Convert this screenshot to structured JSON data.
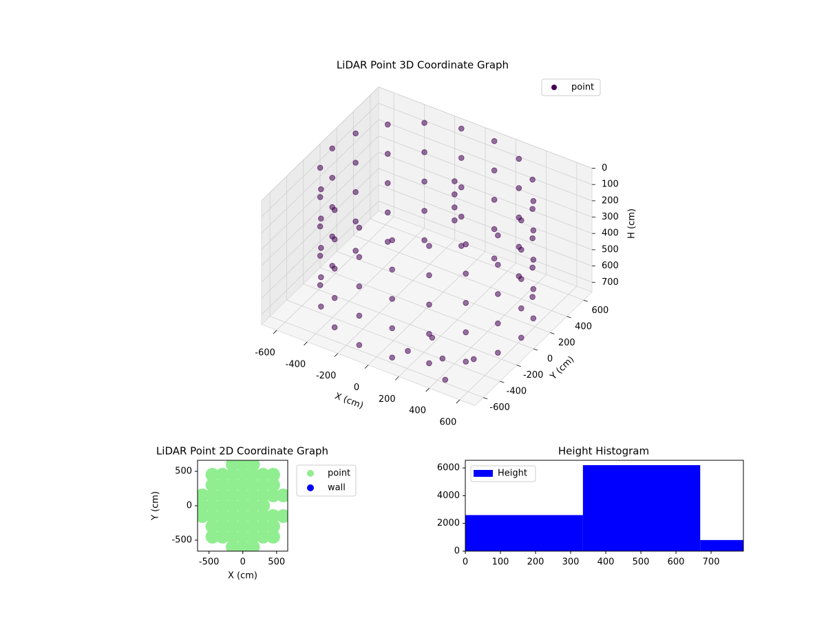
{
  "chart_data": [
    {
      "type": "scatter3d",
      "title": "LiDAR Point 3D Coordinate Graph",
      "xlabel": "X (cm)",
      "ylabel": "Y (cm)",
      "zlabel": "H (cm)",
      "xlim": [
        -700,
        700
      ],
      "ylim": [
        -700,
        700
      ],
      "zlim": [
        0,
        760
      ],
      "z_inverted": true,
      "xticks": [
        -600,
        -400,
        -200,
        0,
        200,
        400,
        600
      ],
      "yticks": [
        -600,
        -400,
        -200,
        0,
        200,
        400,
        600
      ],
      "zticks": [
        0,
        100,
        200,
        300,
        400,
        500,
        600,
        700
      ],
      "grid": true,
      "legend": "upper right",
      "series": [
        {
          "name": "point",
          "color": "#440154",
          "x": [
            620,
            583,
            475,
            310,
            108,
            -108,
            -310,
            -475,
            -583,
            -620,
            -583,
            -475,
            -310,
            -108,
            108,
            310,
            475,
            583,
            620,
            583,
            475,
            310,
            108,
            -108,
            -310,
            -475,
            -583,
            -620,
            -583,
            -475,
            -310,
            -108,
            108,
            310,
            475,
            583,
            620,
            583,
            475,
            310,
            108,
            -108,
            -310,
            -475,
            -583,
            -620,
            -583,
            -475,
            -310,
            -108,
            108,
            310,
            475,
            583,
            620,
            583,
            475,
            310,
            108,
            -108,
            -310,
            -475,
            -583,
            -620,
            -583,
            -475,
            -310,
            -108,
            108,
            310,
            475,
            583,
            620,
            583,
            475,
            310,
            108,
            -108,
            -310,
            -475,
            -583,
            -620,
            -583,
            -475,
            -310,
            -108,
            108,
            310,
            475,
            583,
            100,
            100,
            100,
            100,
            200,
            350,
            500,
            150,
            450
          ],
          "y": [
            0,
            212,
            399,
            537,
            611,
            611,
            537,
            399,
            212,
            0,
            -212,
            -399,
            -537,
            -611,
            -611,
            -537,
            -399,
            -212,
            0,
            212,
            399,
            537,
            611,
            611,
            537,
            399,
            212,
            0,
            -212,
            -399,
            -537,
            -611,
            -611,
            -537,
            -399,
            -212,
            0,
            212,
            399,
            537,
            611,
            611,
            537,
            399,
            212,
            0,
            -212,
            -399,
            -537,
            -611,
            -611,
            -537,
            -399,
            -212,
            0,
            212,
            399,
            537,
            611,
            611,
            537,
            399,
            212,
            0,
            -212,
            -399,
            -537,
            -611,
            -611,
            -537,
            -399,
            -212,
            0,
            212,
            399,
            537,
            611,
            611,
            537,
            399,
            212,
            0,
            -212,
            -399,
            -537,
            -611,
            -611,
            -537,
            -399,
            -212,
            150,
            150,
            150,
            150,
            -300,
            -450,
            -350,
            -500,
            -600
          ],
          "z": [
            0,
            0,
            0,
            0,
            0,
            0,
            0,
            0,
            0,
            0,
            0,
            0,
            0,
            0,
            0,
            0,
            0,
            0,
            180,
            180,
            180,
            180,
            180,
            180,
            180,
            180,
            180,
            180,
            180,
            180,
            180,
            180,
            180,
            180,
            180,
            180,
            360,
            360,
            360,
            360,
            360,
            360,
            360,
            360,
            360,
            360,
            360,
            360,
            360,
            360,
            360,
            360,
            360,
            360,
            540,
            540,
            540,
            540,
            540,
            540,
            540,
            540,
            540,
            540,
            540,
            540,
            540,
            540,
            540,
            540,
            540,
            540,
            720,
            720,
            720,
            720,
            720,
            720,
            720,
            720,
            720,
            720,
            720,
            720,
            720,
            720,
            720,
            720,
            720,
            720,
            20,
            100,
            180,
            260,
            720,
            720,
            720,
            720,
            740
          ]
        }
      ]
    },
    {
      "type": "scatter",
      "title": "LiDAR Point 2D Coordinate Graph",
      "xlabel": "X (cm)",
      "ylabel": "Y (cm)",
      "xlim": [
        -670,
        665
      ],
      "ylim": [
        -660,
        660
      ],
      "xticks": [
        -500,
        0,
        500
      ],
      "yticks": [
        -500,
        0,
        500
      ],
      "legend": "outside right",
      "series": [
        {
          "name": "point",
          "color": "#90ee90",
          "x": [
            -150,
            0,
            150,
            -450,
            -300,
            -150,
            0,
            150,
            300,
            450,
            -450,
            -300,
            -150,
            0,
            150,
            300,
            450,
            -600,
            -450,
            -300,
            -150,
            0,
            150,
            300,
            450,
            600,
            -600,
            -450,
            -300,
            -150,
            0,
            150,
            300,
            -600,
            -450,
            -300,
            -150,
            0,
            150,
            300,
            450,
            600,
            -450,
            -300,
            -150,
            0,
            150,
            300,
            450,
            -450,
            -300,
            -150,
            0,
            150,
            300,
            450,
            -150,
            0,
            150
          ],
          "y": [
            600,
            600,
            600,
            450,
            450,
            450,
            450,
            450,
            450,
            450,
            300,
            300,
            300,
            300,
            300,
            300,
            300,
            150,
            150,
            150,
            150,
            150,
            150,
            150,
            150,
            150,
            0,
            0,
            0,
            0,
            0,
            0,
            0,
            -150,
            -150,
            -150,
            -150,
            -150,
            -150,
            -150,
            -150,
            -150,
            -300,
            -300,
            -300,
            -300,
            -300,
            -300,
            -300,
            -450,
            -450,
            -450,
            -450,
            -450,
            -450,
            -450,
            -600,
            -600,
            -600
          ]
        },
        {
          "name": "wall",
          "color": "#0000ff",
          "x": [],
          "y": []
        }
      ]
    },
    {
      "type": "histogram",
      "title": "Height Histogram",
      "xlim": [
        0,
        792
      ],
      "ylim": [
        0,
        6550
      ],
      "xticks": [
        0,
        100,
        200,
        300,
        400,
        500,
        600,
        700
      ],
      "yticks": [
        0,
        2000,
        4000,
        6000
      ],
      "legend": "upper left",
      "bins": [
        0,
        335,
        669,
        792
      ],
      "series": [
        {
          "name": "Height",
          "color": "#0000ff",
          "values": [
            2600,
            6200,
            800
          ]
        }
      ]
    }
  ]
}
